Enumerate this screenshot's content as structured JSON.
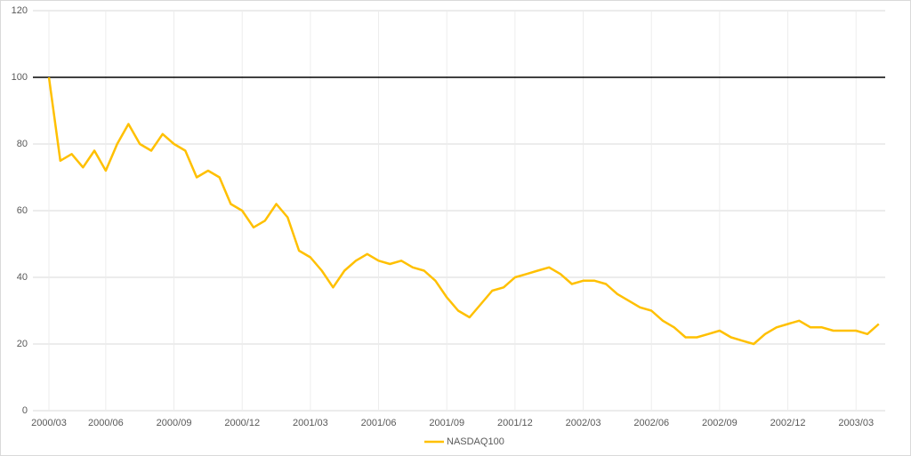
{
  "chart_data": {
    "type": "line",
    "categories": [
      "2000/03",
      null,
      null,
      null,
      null,
      "2000/06",
      null,
      null,
      null,
      null,
      null,
      "2000/09",
      null,
      null,
      null,
      null,
      null,
      "2000/12",
      null,
      null,
      null,
      null,
      null,
      "2001/03",
      null,
      null,
      null,
      null,
      null,
      "2001/06",
      null,
      null,
      null,
      null,
      null,
      "2001/09",
      null,
      null,
      null,
      null,
      null,
      "2001/12",
      null,
      null,
      null,
      null,
      null,
      "2002/03",
      null,
      null,
      null,
      null,
      null,
      "2002/06",
      null,
      null,
      null,
      null,
      null,
      "2002/09",
      null,
      null,
      null,
      null,
      null,
      "2002/12",
      null,
      null,
      null,
      null,
      null,
      "2003/03",
      null,
      null
    ],
    "series": [
      {
        "name": "NASDAQ100",
        "color": "#ffc000",
        "values": [
          100,
          75,
          77,
          73,
          78,
          72,
          80,
          86,
          80,
          78,
          83,
          80,
          78,
          70,
          72,
          70,
          62,
          60,
          55,
          57,
          62,
          58,
          48,
          46,
          42,
          37,
          42,
          45,
          47,
          45,
          44,
          45,
          43,
          42,
          39,
          34,
          30,
          28,
          32,
          36,
          37,
          40,
          41,
          42,
          43,
          41,
          38,
          39,
          39,
          38,
          35,
          33,
          31,
          30,
          27,
          25,
          22,
          22,
          23,
          24,
          22,
          21,
          20,
          23,
          25,
          26,
          27,
          25,
          25,
          24,
          24,
          24,
          23,
          26
        ]
      }
    ],
    "hline": {
      "value": 100,
      "color": "#000000"
    },
    "ylim": [
      0,
      120
    ],
    "yticks": [
      0,
      20,
      40,
      60,
      80,
      100,
      120
    ],
    "grid": true,
    "legend": "bottom"
  }
}
